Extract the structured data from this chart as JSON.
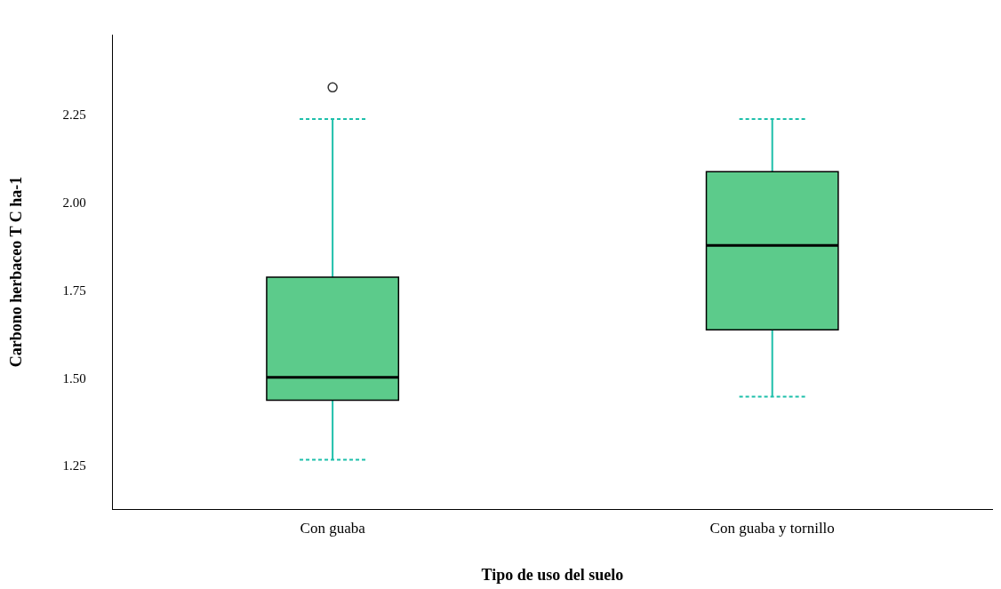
{
  "chart_data": {
    "type": "box",
    "xlabel": "Tipo de uso del suelo",
    "ylabel": "Carbono herbaceo T C ha-1",
    "categories": [
      "Con guaba",
      "Con guaba y tornillo"
    ],
    "color": "#5ccb8b",
    "boxes": [
      {
        "low": 1.27,
        "q1": 1.44,
        "median": 1.505,
        "q3": 1.79,
        "high": 2.24,
        "outliers": [
          2.33
        ]
      },
      {
        "low": 1.45,
        "q1": 1.64,
        "median": 1.88,
        "q3": 2.09,
        "high": 2.24
      }
    ],
    "ylim": [
      1.13,
      2.48
    ],
    "yticks": [
      {
        "value": 1.25,
        "label": "1.25"
      },
      {
        "value": 1.5,
        "label": "1.50"
      },
      {
        "value": 1.75,
        "label": "1.75"
      },
      {
        "value": 2,
        "label": "2.00"
      },
      {
        "value": 2.25,
        "label": "2.25"
      }
    ],
    "grid": false,
    "legend": false
  }
}
